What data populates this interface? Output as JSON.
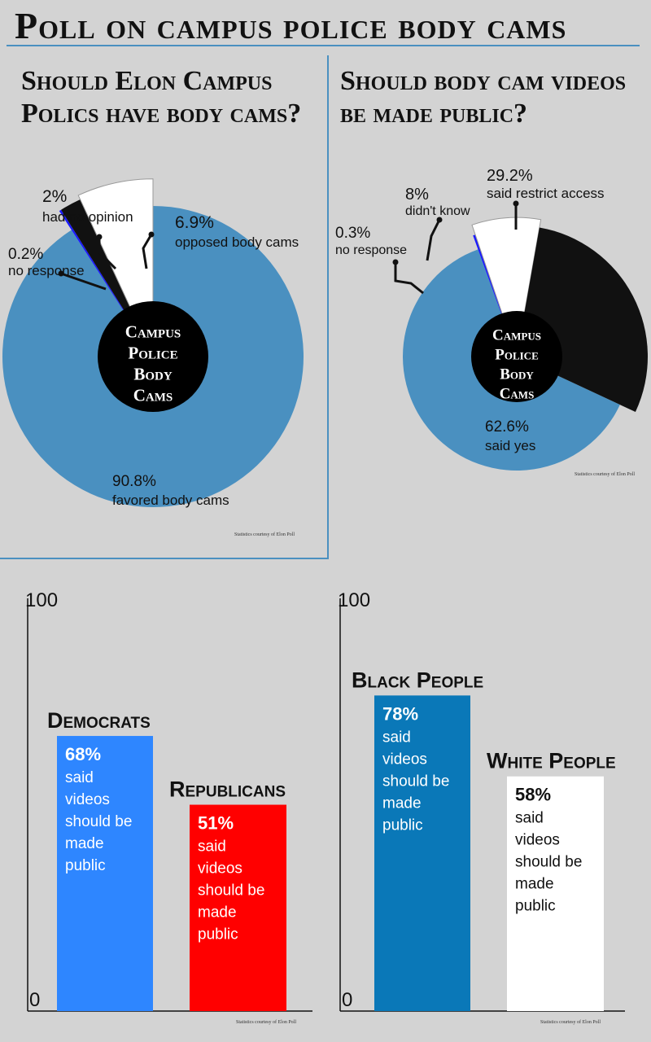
{
  "title": "Poll on campus police body cams",
  "chart_data": [
    {
      "type": "pie",
      "title": "Should Elon Campus Polics have body cams?",
      "center_label": [
        "Campus",
        "Police",
        "Body",
        "Cams"
      ],
      "slices": [
        {
          "value": 90.8,
          "pct": "90.8%",
          "label": "favored body cams",
          "color": "#4a90c0"
        },
        {
          "value": 0.2,
          "pct": "0.2%",
          "label": "no response",
          "color": "#1a1aff"
        },
        {
          "value": 2,
          "pct": "2%",
          "label": "had no opinion",
          "color": "#111111"
        },
        {
          "value": 6.9,
          "pct": "6.9%",
          "label": "opposed body cams",
          "color": "#ffffff"
        }
      ],
      "credit": "Statistics courtesy of Elon Poll"
    },
    {
      "type": "pie",
      "title": "Should body cam videos be made public?",
      "center_label": [
        "Campus",
        "Police",
        "Body",
        "Cams"
      ],
      "slices": [
        {
          "value": 62.6,
          "pct": "62.6%",
          "label": "said yes",
          "color": "#4a90c0"
        },
        {
          "value": 0.3,
          "pct": "0.3%",
          "label": "no response",
          "color": "#1a1aff"
        },
        {
          "value": 8,
          "pct": "8%",
          "label": "didn't know",
          "color": "#ffffff"
        },
        {
          "value": 29.2,
          "pct": "29.2%",
          "label": "said restrict access",
          "color": "#111111"
        }
      ],
      "credit": "Statistics courtesy of Elon Poll"
    },
    {
      "type": "bar",
      "ylim": [
        0,
        100
      ],
      "ytick_labels": [
        "100",
        "0"
      ],
      "bars": [
        {
          "category": "Democrats",
          "value": 68,
          "pct": "68%",
          "note": [
            "said",
            "videos",
            "should be",
            "made",
            "public"
          ],
          "color": "#2e86ff",
          "text_color": "#ffffff"
        },
        {
          "category": "Republicans",
          "value": 51,
          "pct": "51%",
          "note": [
            "said",
            "videos",
            "should be",
            "made",
            "public"
          ],
          "color": "#ff0000",
          "text_color": "#ffffff"
        }
      ],
      "credit": "Statistics courtesy of Elon Poll"
    },
    {
      "type": "bar",
      "ylim": [
        0,
        100
      ],
      "ytick_labels": [
        "100",
        "0"
      ],
      "bars": [
        {
          "category": "Black People",
          "value": 78,
          "pct": "78%",
          "note": [
            "said",
            "videos",
            "should be",
            "made",
            "public"
          ],
          "color": "#0a78b8",
          "text_color": "#ffffff"
        },
        {
          "category": "White People",
          "value": 58,
          "pct": "58%",
          "note": [
            "said",
            "videos",
            "should be",
            "made",
            "public"
          ],
          "color": "#ffffff",
          "text_color": "#111111"
        }
      ],
      "credit": "Statistics courtesy of Elon Poll"
    }
  ]
}
